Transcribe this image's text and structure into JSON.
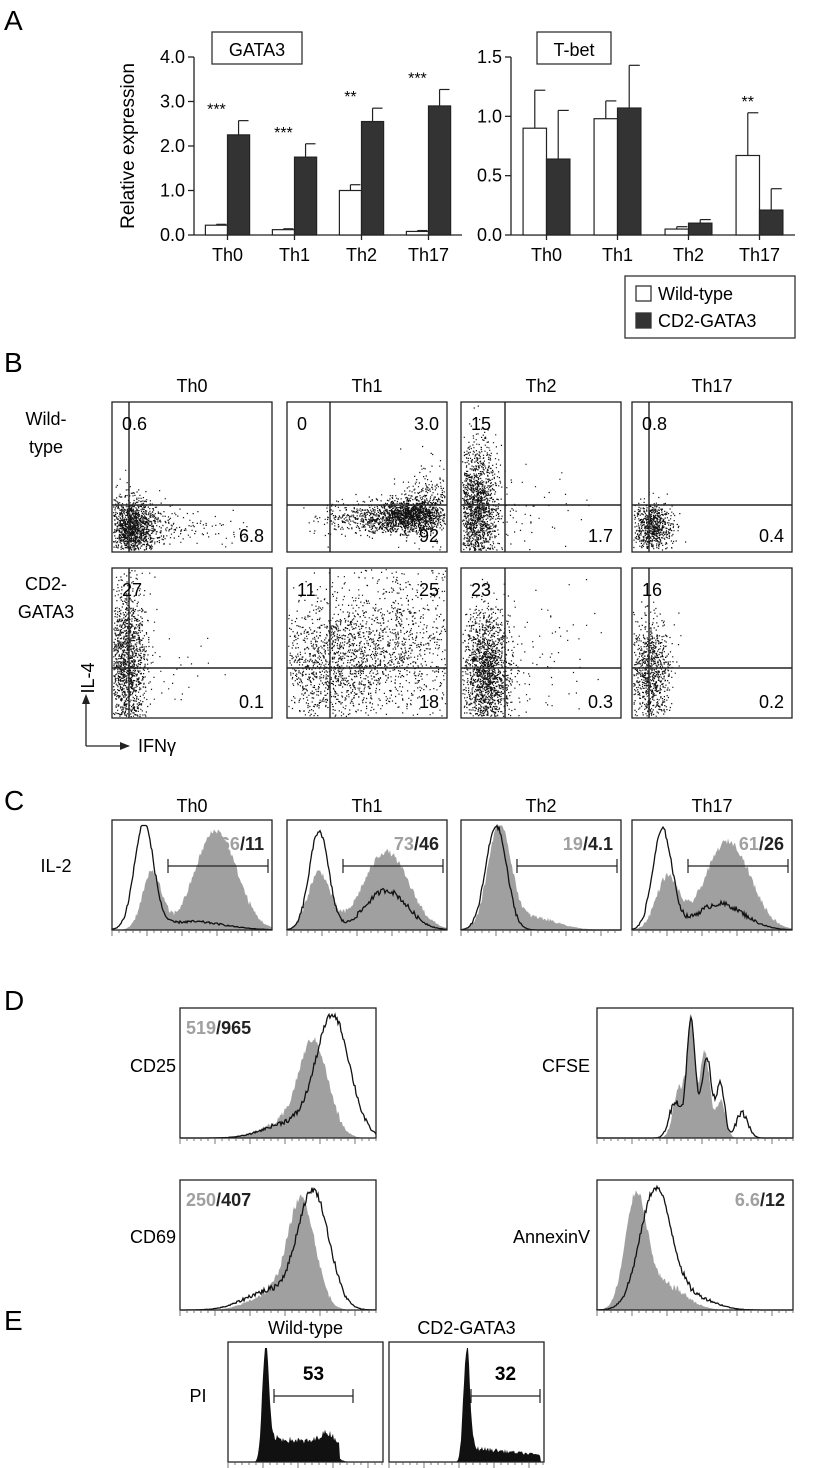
{
  "panel_letters": [
    "A",
    "B",
    "C",
    "D",
    "E"
  ],
  "chart_data": [
    {
      "type": "bar",
      "panel": "A",
      "title": "GATA3",
      "ylabel": "Relative expression",
      "ylim": [
        0,
        4
      ],
      "yticks": [
        "0.0",
        "1.0",
        "2.0",
        "3.0",
        "4.0"
      ],
      "categories": [
        "Th0",
        "Th1",
        "Th2",
        "Th17"
      ],
      "series": [
        {
          "name": "Wild-type",
          "color": "#ffffff",
          "values": [
            0.22,
            0.12,
            1.0,
            0.08
          ],
          "errors": [
            0.02,
            0.02,
            0.13,
            0.02
          ]
        },
        {
          "name": "CD2-GATA3",
          "color": "#333333",
          "values": [
            2.25,
            1.75,
            2.55,
            2.9
          ],
          "errors": [
            0.32,
            0.3,
            0.3,
            0.37
          ]
        }
      ],
      "annotations": [
        "***",
        "***",
        "**",
        "***"
      ]
    },
    {
      "type": "bar",
      "panel": "A",
      "title": "T-bet",
      "ylabel": "",
      "ylim": [
        0,
        1.5
      ],
      "yticks": [
        "0.0",
        "0.5",
        "1.0",
        "1.5"
      ],
      "categories": [
        "Th0",
        "Th1",
        "Th2",
        "Th17"
      ],
      "series": [
        {
          "name": "Wild-type",
          "color": "#ffffff",
          "values": [
            0.9,
            0.98,
            0.05,
            0.67
          ],
          "errors": [
            0.32,
            0.15,
            0.02,
            0.36
          ]
        },
        {
          "name": "CD2-GATA3",
          "color": "#333333",
          "values": [
            0.64,
            1.07,
            0.1,
            0.21
          ],
          "errors": [
            0.41,
            0.36,
            0.03,
            0.18
          ]
        }
      ],
      "annotations": [
        "",
        "",
        "",
        "**"
      ]
    },
    {
      "type": "scatter",
      "panel": "B",
      "columns": [
        "Th0",
        "Th1",
        "Th2",
        "Th17"
      ],
      "rows": [
        "Wild-\ntype",
        "CD2-\nGATA3"
      ],
      "ylabel": "IL-4",
      "xlabel": "IFNγ",
      "quadrants": [
        [
          {
            "ul": "0.6",
            "ur": "",
            "lr": "6.8"
          },
          {
            "ul": "0",
            "ur": "3.0",
            "lr": "92"
          },
          {
            "ul": "15",
            "ur": "",
            "lr": "1.7"
          },
          {
            "ul": "0.8",
            "ur": "",
            "lr": "0.4"
          }
        ],
        [
          {
            "ul": "27",
            "ur": "",
            "lr": "0.1"
          },
          {
            "ul": "11",
            "ur": "25",
            "lr": "18"
          },
          {
            "ul": "23",
            "ur": "",
            "lr": "0.3"
          },
          {
            "ul": "16",
            "ur": "",
            "lr": "0.2"
          }
        ]
      ]
    },
    {
      "type": "area",
      "panel": "C",
      "row_label": "IL-2",
      "columns": [
        "Th0",
        "Th1",
        "Th2",
        "Th17"
      ],
      "gate_values": [
        [
          "66",
          "11"
        ],
        [
          "73",
          "46"
        ],
        [
          "19",
          "4.1"
        ],
        [
          "61",
          "26"
        ]
      ]
    },
    {
      "type": "area",
      "panel": "D",
      "plots": [
        {
          "label": "CD25",
          "values": [
            "519",
            "965"
          ]
        },
        {
          "label": "CFSE",
          "values": []
        },
        {
          "label": "CD69",
          "values": [
            "250",
            "407"
          ]
        },
        {
          "label": "AnnexinV",
          "values": [
            "6.6",
            "12"
          ]
        }
      ]
    },
    {
      "type": "area",
      "panel": "E",
      "row_label": "PI",
      "columns": [
        "Wild-type",
        "CD2-GATA3"
      ],
      "gate_values": [
        "53",
        "32"
      ]
    }
  ],
  "value_separator": "/",
  "colors": {
    "wild_type": "#a0a0a0",
    "transgenic": "#222222",
    "bar_dark": "#333333"
  }
}
